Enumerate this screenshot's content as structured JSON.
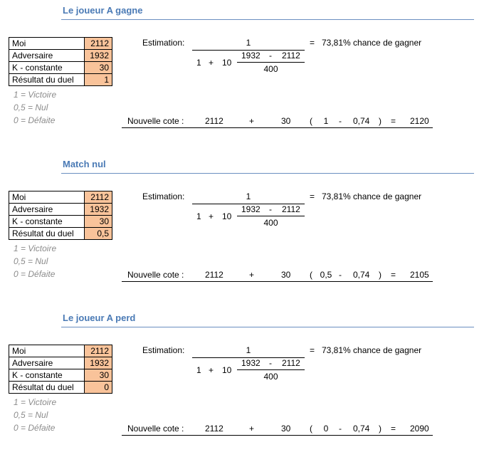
{
  "sections": [
    {
      "title": "Le joueur A gagne",
      "table": [
        {
          "label": "Moi",
          "value": "2112"
        },
        {
          "label": "Adversaire",
          "value": "1932"
        },
        {
          "label": "K - constante",
          "value": "30"
        },
        {
          "label": "Résultat du duel",
          "value": "1"
        }
      ],
      "legend": [
        "1 = Victoire",
        "0,5 = Nul",
        "0 = Défaite"
      ],
      "estimation_label": "Estimation:",
      "numerator": "1",
      "denom_1": "1",
      "denom_plus": "+",
      "denom_10": "10",
      "exp_opp": "1932",
      "exp_minus": "-",
      "exp_me": "2112",
      "exp_den": "400",
      "result_eq": "=",
      "result_text": "73,81% chance de gagner",
      "nouvelle_label": "Nouvelle cote :",
      "n_me": "2112",
      "n_plus": "+",
      "n_k": "30",
      "n_open": "(",
      "n_result": "1",
      "n_minus": "-",
      "n_prob": "0,74",
      "n_close": ")",
      "n_eq": "=",
      "n_new": "2120"
    },
    {
      "title": "Match nul",
      "table": [
        {
          "label": "Moi",
          "value": "2112"
        },
        {
          "label": "Adversaire",
          "value": "1932"
        },
        {
          "label": "K - constante",
          "value": "30"
        },
        {
          "label": "Résultat du duel",
          "value": "0,5"
        }
      ],
      "legend": [
        "1 = Victoire",
        "0,5 = Nul",
        "0 = Défaite"
      ],
      "estimation_label": "Estimation:",
      "numerator": "1",
      "denom_1": "1",
      "denom_plus": "+",
      "denom_10": "10",
      "exp_opp": "1932",
      "exp_minus": "-",
      "exp_me": "2112",
      "exp_den": "400",
      "result_eq": "=",
      "result_text": "73,81% chance de gagner",
      "nouvelle_label": "Nouvelle cote :",
      "n_me": "2112",
      "n_plus": "+",
      "n_k": "30",
      "n_open": "(",
      "n_result": "0,5",
      "n_minus": "-",
      "n_prob": "0,74",
      "n_close": ")",
      "n_eq": "=",
      "n_new": "2105"
    },
    {
      "title": "Le joueur A perd",
      "table": [
        {
          "label": "Moi",
          "value": "2112"
        },
        {
          "label": "Adversaire",
          "value": "1932"
        },
        {
          "label": "K - constante",
          "value": "30"
        },
        {
          "label": "Résultat du duel",
          "value": "0"
        }
      ],
      "legend": [
        "1 = Victoire",
        "0,5 = Nul",
        "0 = Défaite"
      ],
      "estimation_label": "Estimation:",
      "numerator": "1",
      "denom_1": "1",
      "denom_plus": "+",
      "denom_10": "10",
      "exp_opp": "1932",
      "exp_minus": "-",
      "exp_me": "2112",
      "exp_den": "400",
      "result_eq": "=",
      "result_text": "73,81% chance de gagner",
      "nouvelle_label": "Nouvelle cote :",
      "n_me": "2112",
      "n_plus": "+",
      "n_k": "30",
      "n_open": "(",
      "n_result": "0",
      "n_minus": "-",
      "n_prob": "0,74",
      "n_close": ")",
      "n_eq": "=",
      "n_new": "2090"
    }
  ]
}
